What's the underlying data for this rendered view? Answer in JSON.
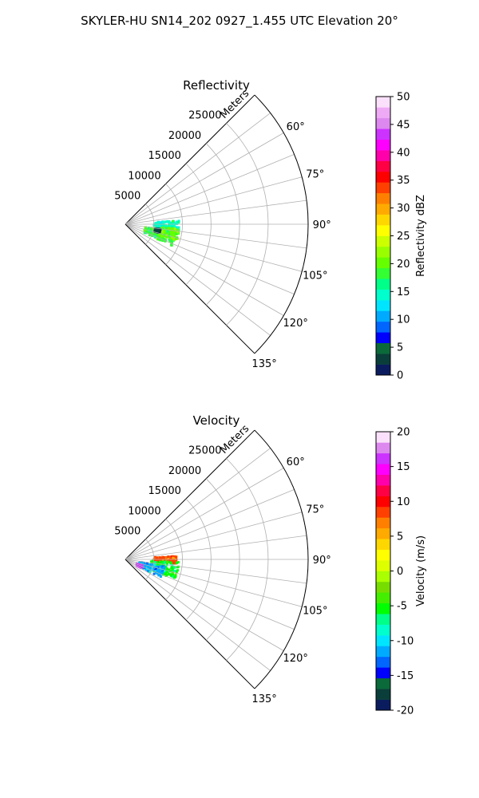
{
  "figure": {
    "title": "SKYLER-HU  SN14_202  0927_1.455 UTC Elevation 20°"
  },
  "chart_data": [
    {
      "type": "polar-sector",
      "title": "Reflectivity",
      "radial_label": "Meters",
      "r_ticks": [
        5000,
        10000,
        15000,
        20000,
        25000
      ],
      "r_tick_labels": [
        "5000",
        "10000",
        "15000",
        "20000",
        "25000"
      ],
      "rmax": 32000,
      "theta_range_deg": [
        45,
        135
      ],
      "theta_ticks": [
        60,
        75,
        90,
        105,
        120,
        135
      ],
      "theta_tick_labels": [
        "60°",
        "75°",
        "90°",
        "105°",
        "120°",
        "135°"
      ],
      "grid": true,
      "colorbar": {
        "label": "Reflectivity dBZ",
        "range": [
          0,
          50
        ],
        "ticks": [
          0,
          5,
          10,
          15,
          20,
          25,
          30,
          35,
          40,
          45,
          50
        ],
        "tick_labels": [
          "0",
          "5",
          "10",
          "15",
          "20",
          "25",
          "30",
          "35",
          "40",
          "45",
          "50"
        ],
        "colors": [
          "#0b1c5e",
          "#0a3e3a",
          "#0a6a3a",
          "#0000ff",
          "#0066ff",
          "#00aaff",
          "#00e5ff",
          "#00ffcc",
          "#00ff88",
          "#33ff33",
          "#66ff00",
          "#99ff00",
          "#ccff00",
          "#ffff00",
          "#ffd700",
          "#ffaa00",
          "#ff8000",
          "#ff4000",
          "#ff0000",
          "#ff0044",
          "#ff00aa",
          "#ff00ff",
          "#cc33ff",
          "#dd88ee",
          "#eeaaf5",
          "#fbe0fb"
        ]
      },
      "echo_regions": [
        {
          "value": 15,
          "r_range": [
            5000,
            9500
          ],
          "theta_range": [
            86,
            102
          ]
        },
        {
          "value": 18,
          "r_range": [
            3500,
            9000
          ],
          "theta_range": [
            98,
            115
          ]
        },
        {
          "value": 20,
          "r_range": [
            6000,
            9500
          ],
          "theta_range": [
            95,
            108
          ]
        },
        {
          "value": 3,
          "r_range": [
            5200,
            6200
          ],
          "theta_range": [
            98,
            104
          ]
        }
      ]
    },
    {
      "type": "polar-sector",
      "title": "Velocity",
      "radial_label": "Meters",
      "r_ticks": [
        5000,
        10000,
        15000,
        20000,
        25000
      ],
      "r_tick_labels": [
        "5000",
        "10000",
        "15000",
        "20000",
        "25000"
      ],
      "rmax": 32000,
      "theta_range_deg": [
        45,
        135
      ],
      "theta_ticks": [
        60,
        75,
        90,
        105,
        120,
        135
      ],
      "theta_tick_labels": [
        "60°",
        "75°",
        "90°",
        "105°",
        "120°",
        "135°"
      ],
      "grid": true,
      "colorbar": {
        "label": "Velocity (m/s)",
        "range": [
          -20,
          20
        ],
        "ticks": [
          -20,
          -15,
          -10,
          -5,
          0,
          5,
          10,
          15,
          20
        ],
        "tick_labels": [
          "-20",
          "-15",
          "-10",
          "-5",
          "0",
          "5",
          "10",
          "15",
          "20"
        ],
        "colors": [
          "#0b1c5e",
          "#0a3e3a",
          "#0a6a3a",
          "#0000ff",
          "#0066ff",
          "#00aaff",
          "#00e5ff",
          "#00ffcc",
          "#00ff88",
          "#00ff00",
          "#44ee00",
          "#77dd00",
          "#aaff00",
          "#ddff00",
          "#ffff00",
          "#ffd700",
          "#ffaa00",
          "#ff8000",
          "#ff4000",
          "#ff0000",
          "#ff0044",
          "#ff00aa",
          "#ff00ff",
          "#cc33ff",
          "#dd88ee",
          "#fbe0fb"
        ]
      },
      "echo_regions": [
        {
          "value": 8,
          "r_range": [
            5000,
            9000
          ],
          "theta_range": [
            86,
            95
          ]
        },
        {
          "value": -6,
          "r_range": [
            4500,
            9500
          ],
          "theta_range": [
            93,
            112
          ]
        },
        {
          "value": -11,
          "r_range": [
            2500,
            7000
          ],
          "theta_range": [
            100,
            117
          ]
        },
        {
          "value": 16,
          "r_range": [
            2200,
            3200
          ],
          "theta_range": [
            110,
            118
          ]
        }
      ]
    }
  ]
}
